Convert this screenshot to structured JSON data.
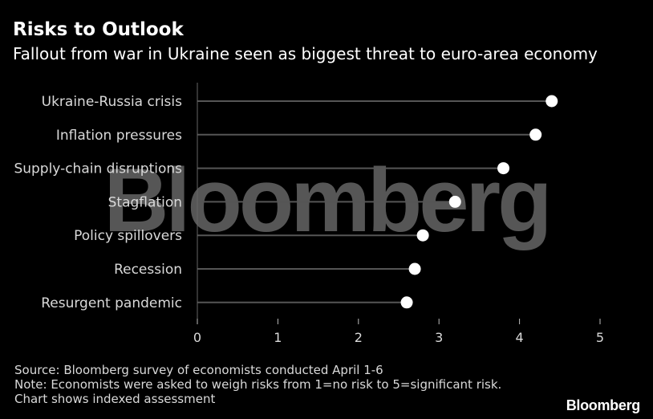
{
  "header": {
    "title": "Risks to Outlook",
    "subtitle": "Fallout from war in Ukraine seen as biggest threat to euro-area economy"
  },
  "watermark": "Bloomberg",
  "chart_data": {
    "type": "lollipop",
    "categories": [
      "Ukraine-Russia crisis",
      "Inflation pressures",
      "Supply-chain disruptions",
      "Stagflation",
      "Policy spillovers",
      "Recession",
      "Resurgent pandemic"
    ],
    "values": [
      4.4,
      4.2,
      3.8,
      3.2,
      2.8,
      2.7,
      2.6
    ],
    "xlim": [
      0,
      5
    ],
    "xticks": [
      "0",
      "1",
      "2",
      "3",
      "4",
      "5"
    ],
    "orientation": "horizontal",
    "grid": false,
    "colors": {
      "background": "#000000",
      "stem": "#555555",
      "dot": "#ffffff",
      "text": "#d9d9d9"
    }
  },
  "footer": {
    "source": "Source: Bloomberg survey of economists conducted April 1-6",
    "note_line1": "Note: Economists were asked to weigh risks from 1=no risk to 5=significant risk.",
    "note_line2": "Chart shows indexed assessment",
    "brand": "Bloomberg"
  }
}
